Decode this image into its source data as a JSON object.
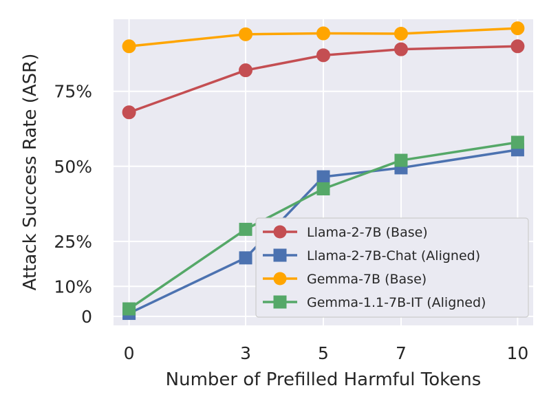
{
  "chart_data": {
    "type": "line",
    "xlabel": "Number of Prefilled Harmful Tokens",
    "ylabel": "Attack Success Rate (ASR)",
    "x": [
      0,
      3,
      5,
      7,
      10
    ],
    "x_ticks": [
      "0",
      "3",
      "5",
      "7",
      "10"
    ],
    "y_ticks": [
      {
        "value": 0,
        "label": "0"
      },
      {
        "value": 10,
        "label": "10%"
      },
      {
        "value": 25,
        "label": "25%"
      },
      {
        "value": 50,
        "label": "50%"
      },
      {
        "value": 75,
        "label": "75%"
      }
    ],
    "xlim": [
      -0.4,
      10.4
    ],
    "ylim": [
      -3,
      99
    ],
    "grid": true,
    "legend_position": "lower-right",
    "series": [
      {
        "name": "Llama-2-7B (Base)",
        "marker": "circle",
        "color": "#c44e52",
        "values": [
          68,
          82,
          87,
          89,
          90
        ]
      },
      {
        "name": "Llama-2-7B-Chat (Aligned)",
        "marker": "square",
        "color": "#4c72b0",
        "values": [
          1,
          19.5,
          46.5,
          49.5,
          55.5
        ]
      },
      {
        "name": "Gemma-7B (Base)",
        "marker": "circle",
        "color": "#ffa500",
        "values": [
          90,
          94,
          94.3,
          94.2,
          96
        ]
      },
      {
        "name": "Gemma-1.1-7B-IT (Aligned)",
        "marker": "square",
        "color": "#55a868",
        "values": [
          2.5,
          29,
          42.5,
          52,
          58
        ]
      }
    ]
  }
}
